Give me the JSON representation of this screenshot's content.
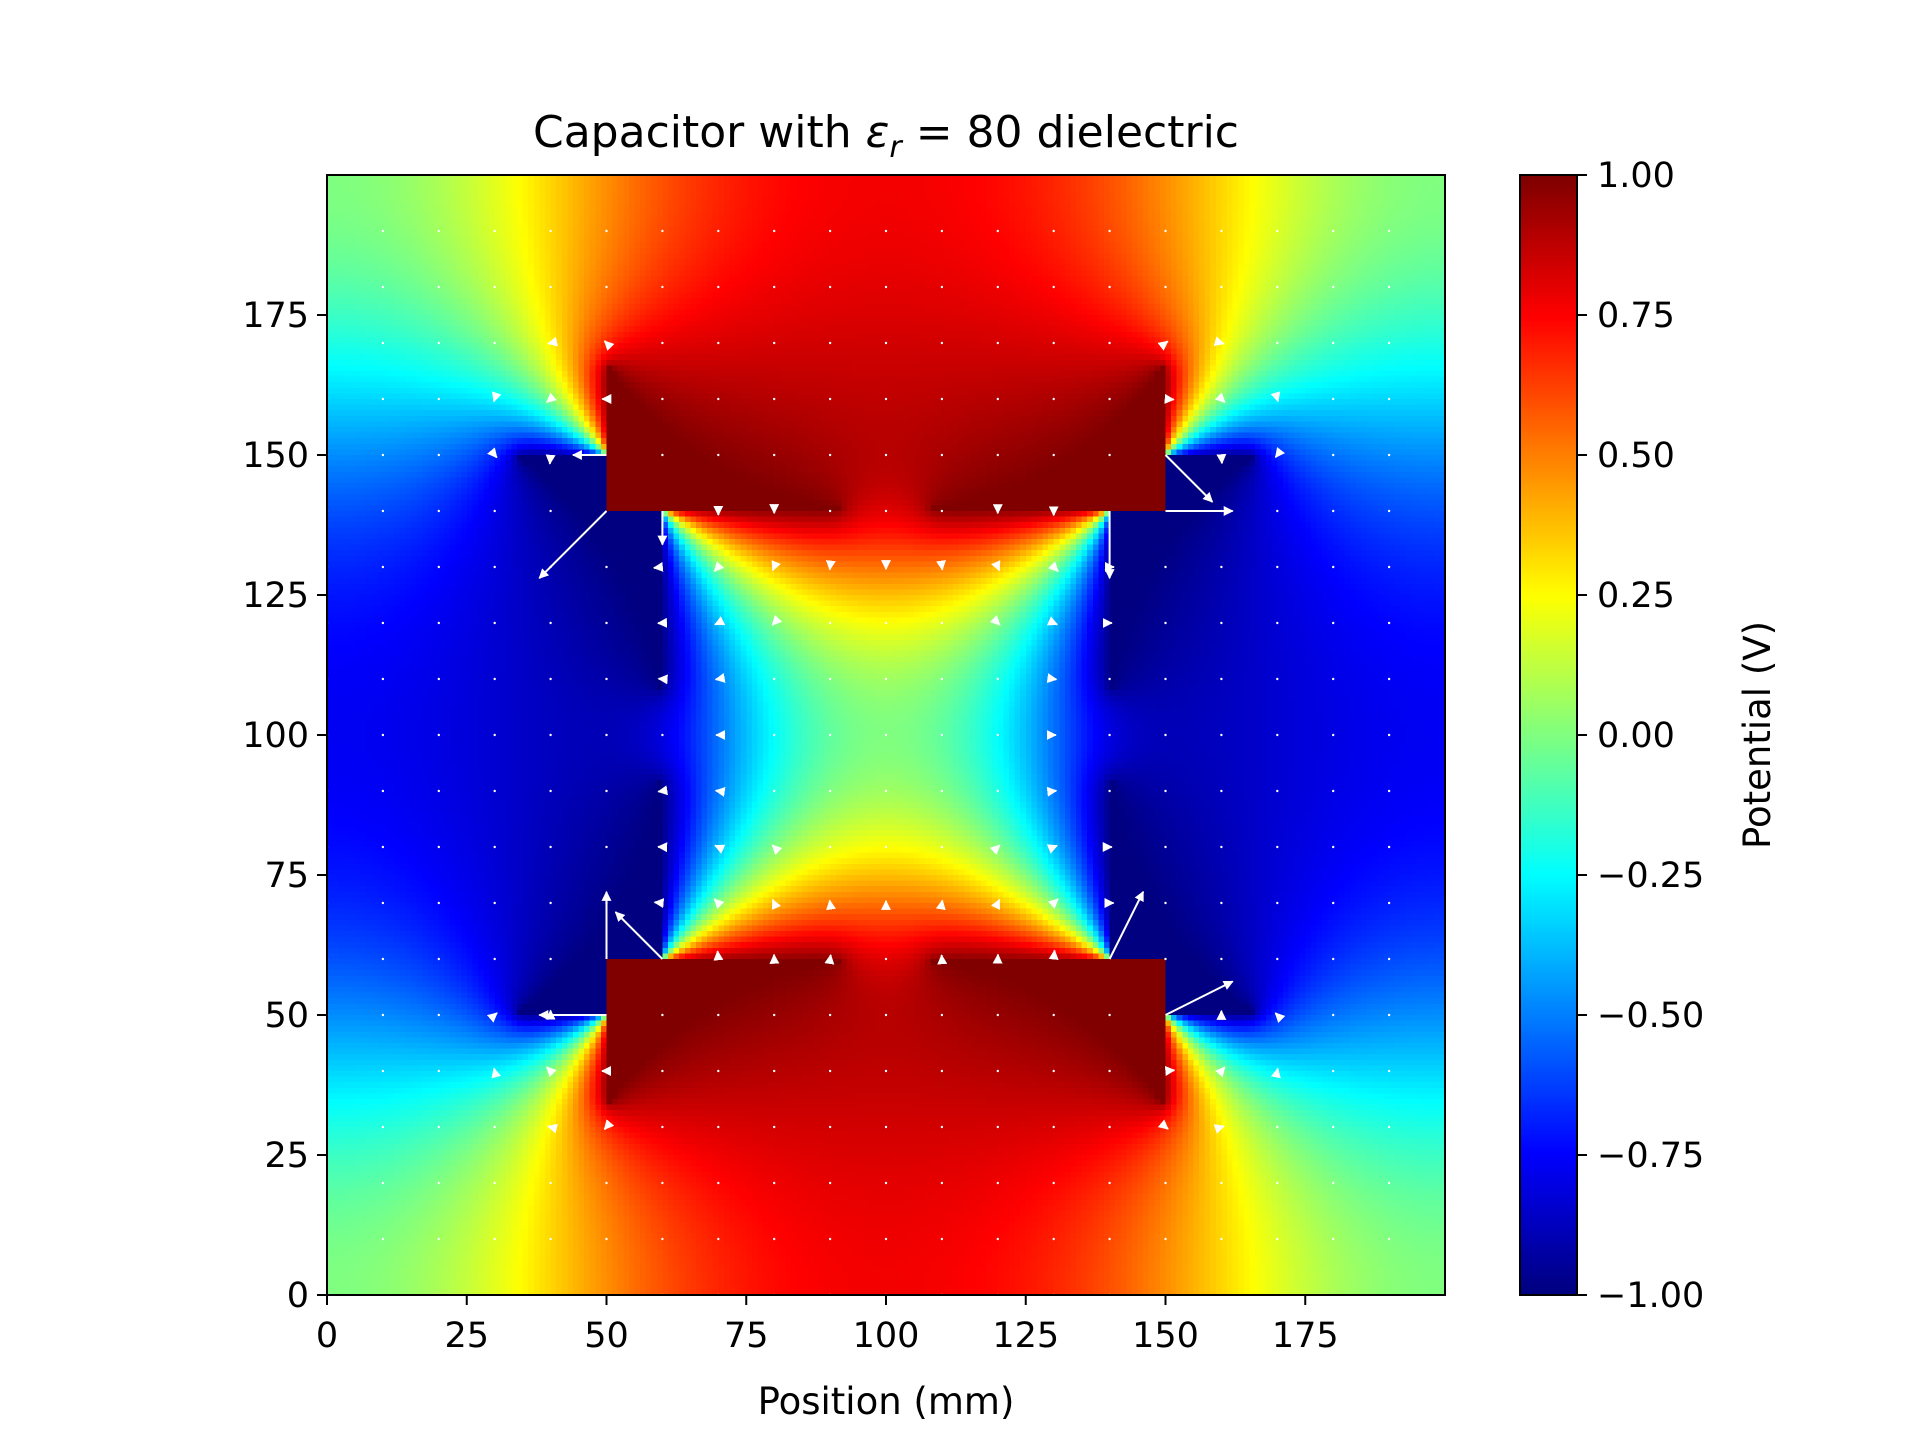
{
  "chart_data": [
    {
      "type": "heatmap",
      "title": "Capacitor with εr = 80 dielectric",
      "title_parts": {
        "prefix": "Capacitor with ",
        "symbol": "ε",
        "subscript": "r",
        "suffix": " = 80 dielectric"
      },
      "xlabel": "Position (mm)",
      "ylabel": "",
      "xlim": [
        0,
        200
      ],
      "ylim": [
        0,
        200
      ],
      "xticks": [
        0,
        25,
        50,
        75,
        100,
        125,
        150,
        175
      ],
      "yticks": [
        0,
        25,
        50,
        75,
        100,
        125,
        150,
        175
      ],
      "xtick_labels": [
        "0",
        "25",
        "50",
        "75",
        "100",
        "125",
        "150",
        "175"
      ],
      "ytick_labels": [
        "0",
        "25",
        "50",
        "75",
        "100",
        "125",
        "150",
        "175"
      ],
      "colormap": "jet",
      "value_range": [
        -1.0,
        1.0
      ],
      "electrodes": [
        {
          "potential": 1.0,
          "rect": {
            "x": [
              50,
              150
            ],
            "y": [
              140,
              200
            ]
          },
          "arc_center": [
            100,
            200
          ],
          "arc_radius": 60
        },
        {
          "potential": 1.0,
          "rect": {
            "x": [
              50,
              150
            ],
            "y": [
              0,
              60
            ]
          },
          "arc_center": [
            100,
            0
          ],
          "arc_radius": 60
        },
        {
          "potential": -1.0,
          "rect": {
            "x": [
              0,
              60
            ],
            "y": [
              50,
              150
            ]
          },
          "arc_center": [
            0,
            100
          ],
          "arc_radius": 60
        },
        {
          "potential": -1.0,
          "rect": {
            "x": [
              140,
              200
            ],
            "y": [
              50,
              150
            ]
          },
          "arc_center": [
            200,
            100
          ],
          "arc_radius": 60
        }
      ],
      "vector_field": {
        "type": "quiver",
        "color": "#ffffff",
        "grid_x": [
          0,
          10,
          20,
          30,
          40,
          50,
          60,
          70,
          80,
          90,
          100,
          110,
          120,
          130,
          140,
          150,
          160,
          170,
          180,
          190
        ],
        "grid_y": [
          0,
          10,
          20,
          30,
          40,
          50,
          60,
          70,
          80,
          90,
          100,
          110,
          120,
          130,
          140,
          150,
          160,
          170,
          180,
          190
        ],
        "field": "E = -grad(V)"
      }
    },
    {
      "type": "colorbar",
      "label": "Potential (V)",
      "colormap": "jet",
      "range": [
        -1.0,
        1.0
      ],
      "ticks": [
        1.0,
        0.75,
        0.5,
        0.25,
        0.0,
        -0.25,
        -0.5,
        -0.75,
        -1.0
      ],
      "tick_labels": [
        "1.00",
        "0.75",
        "0.50",
        "0.25",
        "0.00",
        "−0.25",
        "−0.50",
        "−0.75",
        "−1.00"
      ]
    }
  ]
}
